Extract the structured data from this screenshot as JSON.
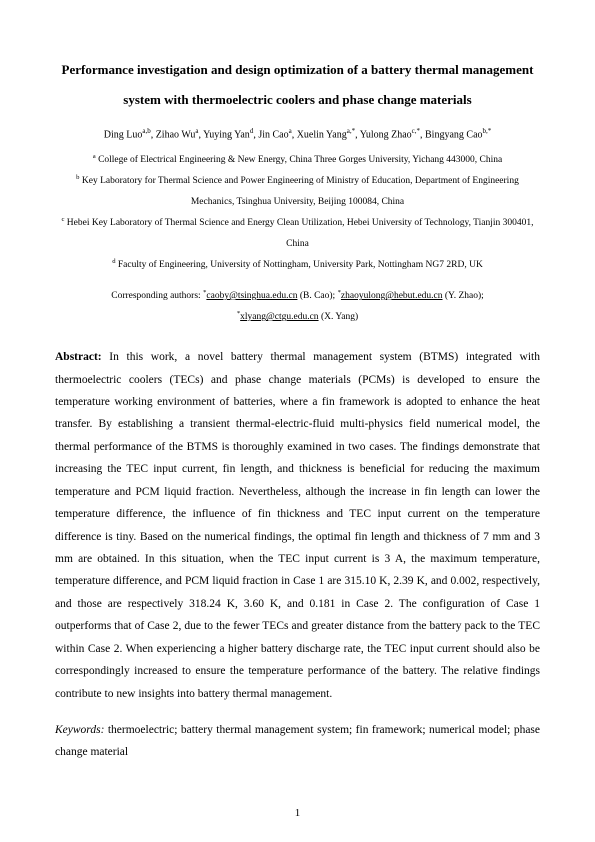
{
  "title": "Performance investigation and design optimization of a battery thermal management system with thermoelectric coolers and phase change materials",
  "authors_html": "Ding Luo<sup>a,b</sup>, Zihao Wu<sup>a</sup>, Yuying Yan<sup>d</sup>, Jin Cao<sup>a</sup>, Xuelin Yang<sup>a,*</sup>, Yulong Zhao<sup>c,*</sup>, Bingyang Cao<sup>b,*</sup>",
  "affiliations": [
    "<sup>a</sup> College of Electrical Engineering & New Energy, China Three Gorges University, Yichang 443000, China",
    "<sup>b</sup> Key Laboratory for Thermal Science and Power Engineering of Ministry of Education, Department of Engineering Mechanics, Tsinghua University, Beijing 100084, China",
    "<sup>c</sup> Hebei Key Laboratory of Thermal Science and Energy Clean Utilization, Hebei University of Technology, Tianjin 300401, China",
    "<sup>d</sup> Faculty of Engineering, University of Nottingham, University Park, Nottingham NG7 2RD, UK"
  ],
  "corresponding_prefix": "Corresponding authors: ",
  "corresponding_entries": [
    {
      "sym": "*",
      "email": "caoby@tsinghua.edu.cn",
      "name": " (B. Cao); "
    },
    {
      "sym": "*",
      "email": "zhaoyulong@hebut.edu.cn",
      "name": " (Y. Zhao);"
    }
  ],
  "corresponding_line2": [
    {
      "sym": "*",
      "email": "xlyang@ctgu.edu.cn",
      "name": " (X. Yang)"
    }
  ],
  "abstract_label": "Abstract: ",
  "abstract": "In this work, a novel battery thermal management system (BTMS) integrated with thermoelectric coolers (TECs) and phase change materials (PCMs) is developed to ensure the temperature working environment of batteries, where a fin framework is adopted to enhance the heat transfer. By establishing a transient thermal-electric-fluid multi-physics field numerical model, the thermal performance of the BTMS is thoroughly examined in two cases. The findings demonstrate that increasing the TEC input current, fin length, and thickness is beneficial for reducing the maximum temperature and PCM liquid fraction. Nevertheless, although the increase in fin length can lower the temperature difference, the influence of fin thickness and TEC input current on the temperature difference is tiny. Based on the numerical findings, the optimal fin length and thickness of 7 mm and 3 mm are obtained. In this situation, when the TEC input current is 3 A, the maximum temperature, temperature difference, and PCM liquid fraction in Case 1 are 315.10 K, 2.39 K, and 0.002, respectively, and those are respectively 318.24 K, 3.60 K, and 0.181 in Case 2. The configuration of Case 1 outperforms that of Case 2, due to the fewer TECs and greater distance from the battery pack to the TEC within Case 2. When experiencing a higher battery discharge rate, the TEC input current should also be correspondingly increased to ensure the temperature performance of the battery. The relative findings contribute to new insights into battery thermal management.",
  "keywords_label": "Keywords: ",
  "keywords": "thermoelectric; battery thermal management system; fin framework; numerical model; phase change material",
  "page_number": "1"
}
